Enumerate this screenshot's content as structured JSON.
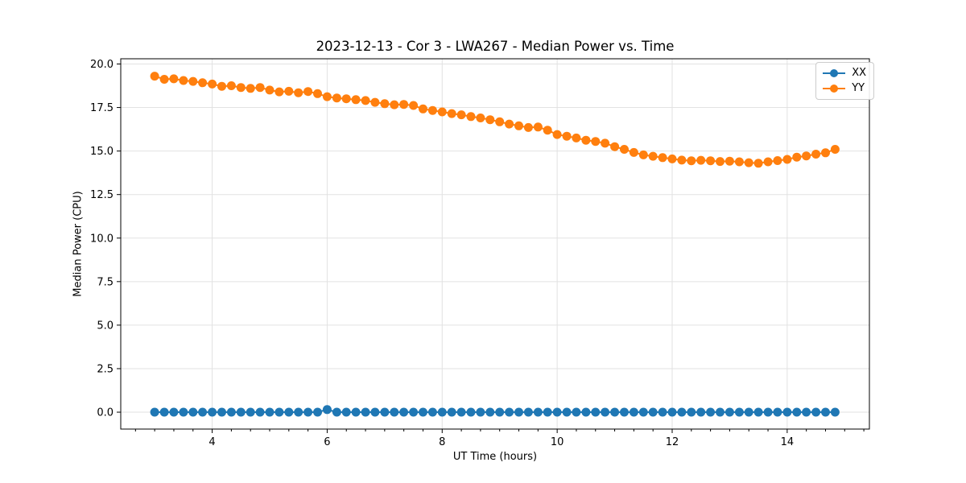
{
  "chart_data": {
    "type": "line",
    "title": "2023-12-13 - Cor 3 - LWA267 - Median Power vs. Time",
    "xlabel": "UT Time (hours)",
    "ylabel": "Median Power (CPU)",
    "xlim": [
      2.41,
      15.43
    ],
    "ylim": [
      -0.97,
      20.3
    ],
    "xticks": [
      4,
      6,
      8,
      10,
      12,
      14
    ],
    "xtick_labels": [
      "4",
      "6",
      "8",
      "10",
      "12",
      "14"
    ],
    "x_minor_tick_step": 0.3333,
    "yticks": [
      0.0,
      2.5,
      5.0,
      7.5,
      10.0,
      12.5,
      15.0,
      17.5,
      20.0
    ],
    "ytick_labels": [
      "0.0",
      "2.5",
      "5.0",
      "7.5",
      "10.0",
      "12.5",
      "15.0",
      "17.5",
      "20.0"
    ],
    "grid": true,
    "grid_color": "#e2e2e2",
    "spine_color": "#000000",
    "legend_position": "upper right",
    "x": [
      3.0,
      3.167,
      3.333,
      3.5,
      3.667,
      3.833,
      4.0,
      4.167,
      4.333,
      4.5,
      4.667,
      4.833,
      5.0,
      5.167,
      5.333,
      5.5,
      5.667,
      5.833,
      6.0,
      6.167,
      6.333,
      6.5,
      6.667,
      6.833,
      7.0,
      7.167,
      7.333,
      7.5,
      7.667,
      7.833,
      8.0,
      8.167,
      8.333,
      8.5,
      8.667,
      8.833,
      9.0,
      9.167,
      9.333,
      9.5,
      9.667,
      9.833,
      10.0,
      10.167,
      10.333,
      10.5,
      10.667,
      10.833,
      11.0,
      11.167,
      11.333,
      11.5,
      11.667,
      11.833,
      12.0,
      12.167,
      12.333,
      12.5,
      12.667,
      12.833,
      13.0,
      13.167,
      13.333,
      13.5,
      13.667,
      13.833,
      14.0,
      14.167,
      14.333,
      14.5,
      14.667,
      14.833
    ],
    "series": [
      {
        "name": "XX",
        "color": "#1f77b4",
        "values": [
          0,
          0,
          0,
          0,
          0,
          0,
          0,
          0,
          0,
          0,
          0,
          0,
          0,
          0,
          0,
          0,
          0,
          0,
          0.15,
          0,
          0,
          0,
          0,
          0,
          0,
          0,
          0,
          0,
          0,
          0,
          0,
          0,
          0,
          0,
          0,
          0,
          0,
          0,
          0,
          0,
          0,
          0,
          0,
          0,
          0,
          0,
          0,
          0,
          0,
          0,
          0,
          0,
          0,
          0,
          0,
          0,
          0,
          0,
          0,
          0,
          0,
          0,
          0,
          0,
          0,
          0,
          0,
          0,
          0,
          0,
          0,
          0
        ]
      },
      {
        "name": "YY",
        "color": "#ff7f0e",
        "values": [
          19.3,
          19.12,
          19.15,
          19.05,
          19.0,
          18.92,
          18.85,
          18.72,
          18.75,
          18.65,
          18.6,
          18.65,
          18.5,
          18.4,
          18.43,
          18.35,
          18.42,
          18.3,
          18.12,
          18.05,
          18.0,
          17.95,
          17.9,
          17.8,
          17.72,
          17.66,
          17.68,
          17.62,
          17.42,
          17.33,
          17.25,
          17.15,
          17.08,
          16.98,
          16.9,
          16.8,
          16.68,
          16.55,
          16.45,
          16.35,
          16.38,
          16.2,
          15.95,
          15.85,
          15.75,
          15.62,
          15.55,
          15.45,
          15.25,
          15.1,
          14.92,
          14.78,
          14.7,
          14.62,
          14.55,
          14.48,
          14.44,
          14.47,
          14.44,
          14.4,
          14.42,
          14.38,
          14.33,
          14.3,
          14.38,
          14.45,
          14.52,
          14.65,
          14.72,
          14.82,
          14.9,
          15.1
        ]
      }
    ]
  }
}
